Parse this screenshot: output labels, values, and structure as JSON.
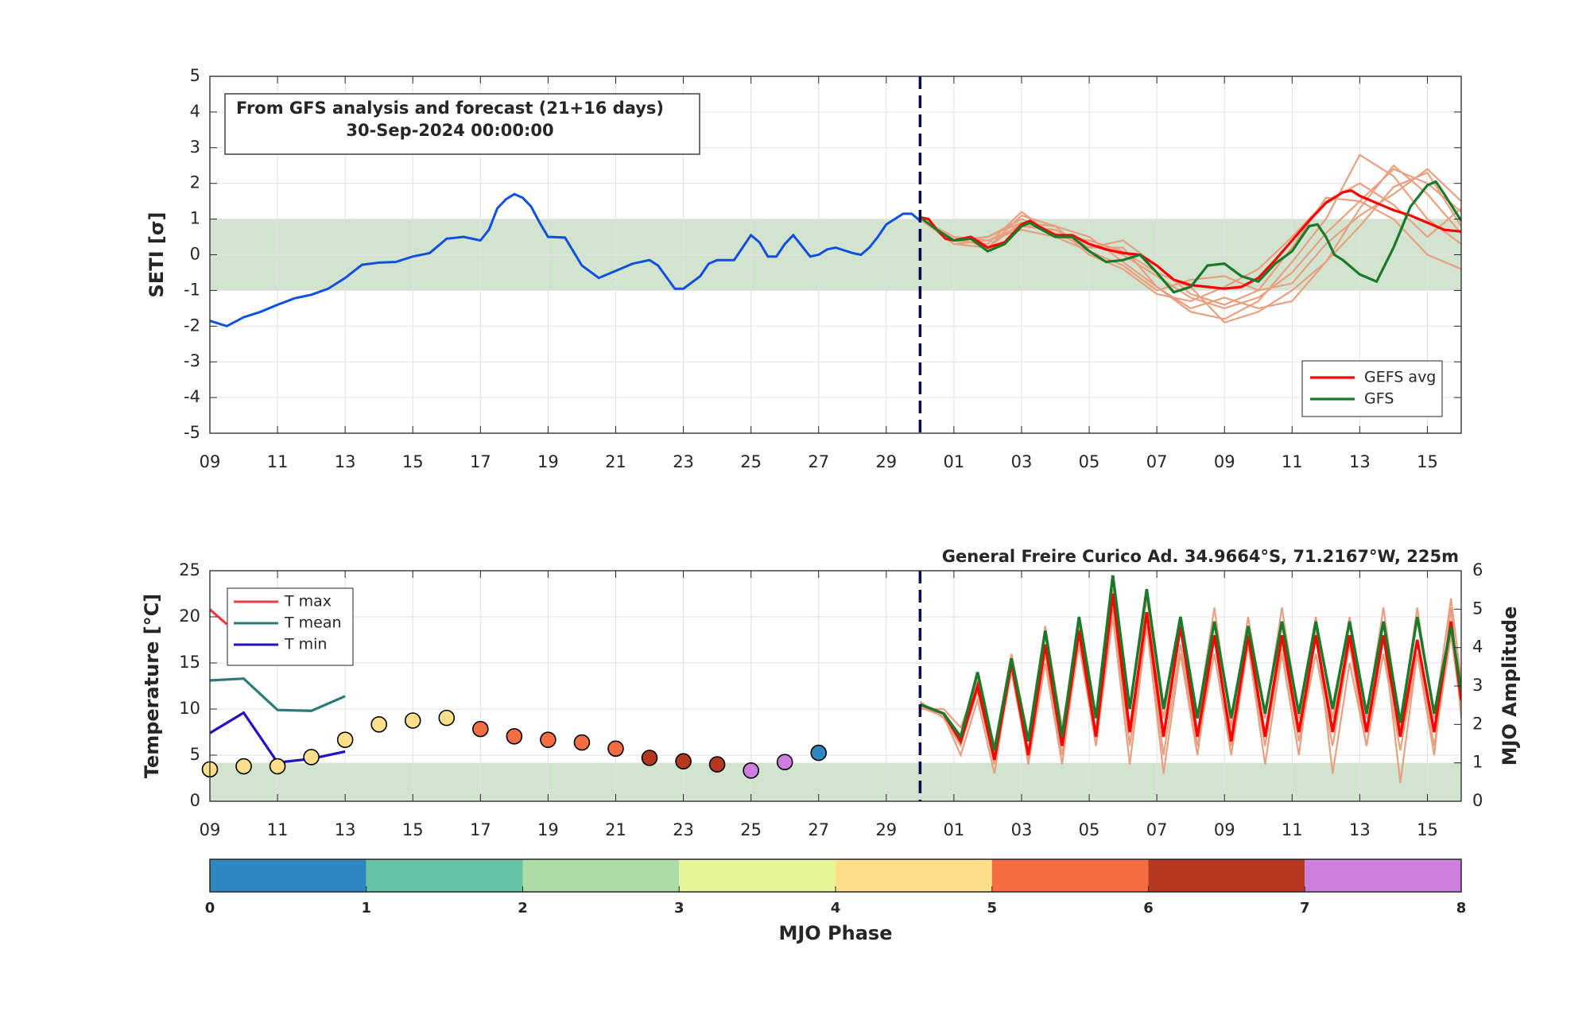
{
  "chart_data": [
    {
      "type": "line",
      "ylabel": "SETI [σ]",
      "annotation": [
        "From GFS analysis and forecast (21+16 days)",
        "30-Sep-2024 00:00:00"
      ],
      "xlim": [
        0,
        37
      ],
      "ylim": [
        -5,
        5
      ],
      "xticks": [
        {
          "value": 0,
          "label": "09"
        },
        {
          "value": 2,
          "label": "11"
        },
        {
          "value": 4,
          "label": "13"
        },
        {
          "value": 6,
          "label": "15"
        },
        {
          "value": 8,
          "label": "17"
        },
        {
          "value": 10,
          "label": "19"
        },
        {
          "value": 12,
          "label": "21"
        },
        {
          "value": 14,
          "label": "23"
        },
        {
          "value": 16,
          "label": "25"
        },
        {
          "value": 18,
          "label": "27"
        },
        {
          "value": 20,
          "label": "29"
        },
        {
          "value": 22,
          "label": "01"
        },
        {
          "value": 24,
          "label": "03"
        },
        {
          "value": 26,
          "label": "05"
        },
        {
          "value": 28,
          "label": "07"
        },
        {
          "value": 30,
          "label": "09"
        },
        {
          "value": 32,
          "label": "11"
        },
        {
          "value": 34,
          "label": "13"
        },
        {
          "value": 36,
          "label": "15"
        }
      ],
      "yticks": [
        -5,
        -4,
        -3,
        -2,
        -1,
        0,
        1,
        2,
        3,
        4,
        5
      ],
      "grid": true,
      "band": [
        -1,
        1
      ],
      "band_color": "#d2e3d0",
      "forecast_start": 21,
      "legend": "lower right",
      "member_color": "#e8a080",
      "member_x": [
        21,
        22,
        23,
        24,
        25,
        26,
        27,
        28,
        29,
        30,
        31,
        32,
        33,
        34,
        35,
        36,
        37
      ],
      "members": [
        [
          1.0,
          0.4,
          0.5,
          0.9,
          0.6,
          0.3,
          0.0,
          -0.6,
          -1.2,
          -1.5,
          -1.2,
          -0.5,
          0.6,
          1.5,
          2.4,
          2.0,
          1.2
        ],
        [
          1.0,
          0.5,
          0.2,
          1.1,
          0.8,
          0.5,
          -0.2,
          -0.9,
          -1.6,
          -1.8,
          -1.3,
          -0.2,
          1.0,
          2.8,
          2.2,
          1.0,
          0.3
        ],
        [
          1.0,
          0.3,
          0.4,
          0.8,
          0.7,
          0.2,
          0.4,
          -0.3,
          -1.1,
          -1.4,
          -1.0,
          -0.8,
          0.3,
          1.1,
          1.7,
          2.4,
          1.5
        ],
        [
          1.0,
          0.4,
          0.3,
          1.2,
          0.5,
          0.1,
          -0.3,
          -1.0,
          -0.7,
          -0.6,
          -1.0,
          0.2,
          1.6,
          1.5,
          1.0,
          0.0,
          -0.4
        ],
        [
          1.0,
          0.5,
          0.4,
          0.7,
          0.5,
          0.4,
          0.1,
          -0.5,
          -0.9,
          -1.9,
          -1.6,
          -1.0,
          -0.2,
          1.3,
          2.5,
          1.7,
          0.6
        ],
        [
          1.0,
          0.3,
          0.2,
          0.9,
          0.8,
          0.0,
          -0.4,
          -1.1,
          -1.3,
          -0.9,
          -0.4,
          0.5,
          1.5,
          2.0,
          1.4,
          0.5,
          1.3
        ],
        [
          1.0,
          0.4,
          0.5,
          1.0,
          0.6,
          0.2,
          0.2,
          -0.9,
          -1.5,
          -1.2,
          -1.5,
          -1.3,
          -0.2,
          0.8,
          1.9,
          2.3,
          0.8
        ]
      ],
      "analysis": {
        "color": "#1050e0",
        "x": [
          0,
          0.5,
          1,
          1.5,
          2,
          2.5,
          3,
          3.5,
          4,
          4.5,
          5,
          5.5,
          6,
          6.5,
          7,
          7.5,
          8,
          8.25,
          8.5,
          8.75,
          9,
          9.25,
          9.5,
          9.75,
          10,
          10.5,
          11,
          11.5,
          12,
          12.5,
          13,
          13.25,
          13.75,
          14,
          14.5,
          14.75,
          15,
          15.5,
          16,
          16.25,
          16.5,
          16.75,
          17,
          17.25,
          17.75,
          18,
          18.25,
          18.5,
          19,
          19.25,
          19.5,
          19.75,
          20,
          20.5,
          20.75,
          21
        ],
        "values": [
          -1.85,
          -2.0,
          -1.75,
          -1.6,
          -1.4,
          -1.22,
          -1.12,
          -0.95,
          -0.65,
          -0.28,
          -0.22,
          -0.2,
          -0.05,
          0.05,
          0.45,
          0.5,
          0.4,
          0.7,
          1.3,
          1.55,
          1.7,
          1.6,
          1.35,
          0.9,
          0.5,
          0.48,
          -0.3,
          -0.65,
          -0.45,
          -0.25,
          -0.15,
          -0.3,
          -0.95,
          -0.95,
          -0.6,
          -0.25,
          -0.15,
          -0.15,
          0.55,
          0.35,
          -0.05,
          -0.05,
          0.3,
          0.55,
          -0.05,
          0.0,
          0.15,
          0.2,
          0.05,
          0.0,
          0.2,
          0.5,
          0.85,
          1.15,
          1.15,
          0.95
        ]
      },
      "series": [
        {
          "name": "GEFS avg",
          "color": "#ff0000",
          "x": [
            21,
            21.25,
            21.5,
            21.75,
            22,
            22.5,
            23,
            23.5,
            24,
            24.25,
            24.5,
            25,
            25.5,
            26,
            26.5,
            27,
            27.5,
            28,
            28.5,
            29,
            29.5,
            30,
            30.5,
            31,
            31.5,
            32,
            32.5,
            33,
            33.5,
            33.75,
            34,
            34.5,
            35,
            35.5,
            36,
            36.5,
            37
          ],
          "values": [
            1.05,
            1.0,
            0.7,
            0.45,
            0.4,
            0.5,
            0.2,
            0.35,
            0.85,
            0.95,
            0.8,
            0.55,
            0.55,
            0.3,
            0.15,
            0.05,
            0.0,
            -0.3,
            -0.7,
            -0.85,
            -0.9,
            -0.95,
            -0.9,
            -0.65,
            -0.15,
            0.4,
            0.95,
            1.45,
            1.75,
            1.8,
            1.65,
            1.45,
            1.25,
            1.1,
            0.9,
            0.7,
            0.65
          ]
        },
        {
          "name": "GFS",
          "color": "#1a7a2a",
          "x": [
            21,
            21.5,
            22,
            22.5,
            23,
            23.5,
            24,
            24.25,
            24.5,
            25,
            25.5,
            26,
            26.5,
            27,
            27.5,
            28,
            28.5,
            29,
            29.5,
            30,
            30.5,
            31,
            31.5,
            32,
            32.5,
            32.75,
            33,
            33.25,
            33.5,
            34,
            34.5,
            35,
            35.5,
            36,
            36.25,
            36.5,
            37
          ],
          "values": [
            1.05,
            0.7,
            0.4,
            0.45,
            0.1,
            0.3,
            0.8,
            0.9,
            0.75,
            0.5,
            0.5,
            0.1,
            -0.2,
            -0.15,
            0.0,
            -0.5,
            -1.05,
            -0.9,
            -0.3,
            -0.25,
            -0.6,
            -0.75,
            -0.25,
            0.1,
            0.8,
            0.85,
            0.5,
            0.0,
            -0.15,
            -0.55,
            -0.75,
            0.2,
            1.35,
            1.95,
            2.05,
            1.7,
            0.95
          ]
        }
      ]
    },
    {
      "type": "line",
      "title": "General Freire Curico Ad. 34.9664°S, 71.2167°W, 225m",
      "ylabel": "Temperature [°C]",
      "y2label": "MJO Amplitude",
      "xlim": [
        0,
        37
      ],
      "ylim": [
        0,
        25
      ],
      "y2lim": [
        0,
        6
      ],
      "xticks": [
        {
          "value": 0,
          "label": "09"
        },
        {
          "value": 2,
          "label": "11"
        },
        {
          "value": 4,
          "label": "13"
        },
        {
          "value": 6,
          "label": "15"
        },
        {
          "value": 8,
          "label": "17"
        },
        {
          "value": 10,
          "label": "19"
        },
        {
          "value": 12,
          "label": "21"
        },
        {
          "value": 14,
          "label": "23"
        },
        {
          "value": 16,
          "label": "25"
        },
        {
          "value": 18,
          "label": "27"
        },
        {
          "value": 20,
          "label": "29"
        },
        {
          "value": 22,
          "label": "01"
        },
        {
          "value": 24,
          "label": "03"
        },
        {
          "value": 26,
          "label": "05"
        },
        {
          "value": 28,
          "label": "07"
        },
        {
          "value": 30,
          "label": "09"
        },
        {
          "value": 32,
          "label": "11"
        },
        {
          "value": 34,
          "label": "13"
        },
        {
          "value": 36,
          "label": "15"
        }
      ],
      "yticks": [
        0,
        5,
        10,
        15,
        20,
        25
      ],
      "y2ticks": [
        0,
        1,
        2,
        3,
        4,
        5,
        6
      ],
      "grid": true,
      "band": [
        0,
        1
      ],
      "band_axis": "y2",
      "band_color": "#d2e3d0",
      "forecast_start": 21,
      "legend": "upper left",
      "series": [
        {
          "name": "T max",
          "color": "#f03c3c",
          "x": [
            0,
            0.5
          ],
          "values": [
            20.8,
            19.2
          ]
        },
        {
          "name": "T mean",
          "color": "#2a7a78",
          "x": [
            0,
            1,
            2,
            3,
            4
          ],
          "values": [
            13.1,
            13.3,
            9.9,
            9.8,
            11.4
          ]
        },
        {
          "name": "T min",
          "color": "#2010c8",
          "x": [
            0,
            1,
            2,
            3,
            4
          ],
          "values": [
            7.4,
            9.6,
            4.2,
            4.6,
            5.4
          ]
        }
      ],
      "member_color": "#e8a080",
      "member_x": [
        21,
        21.7,
        22.2,
        22.7,
        23.2,
        23.7,
        24.2,
        24.7,
        25.2,
        25.7,
        26.2,
        26.7,
        27.2,
        27.7,
        28.2,
        28.7,
        29.2,
        29.7,
        30.2,
        30.7,
        31.2,
        31.7,
        32.2,
        32.7,
        33.2,
        33.7,
        34.2,
        34.7,
        35.2,
        35.7,
        36.2,
        36.7,
        37
      ],
      "members": [
        [
          10.8,
          9,
          6,
          12,
          4,
          14,
          4.5,
          16,
          5,
          17,
          6,
          21,
          6,
          19,
          5,
          17,
          6,
          16,
          5,
          17,
          6,
          17,
          6.5,
          16,
          6,
          17,
          6,
          16,
          5.5,
          16,
          6,
          18,
          10
        ],
        [
          10,
          10,
          8,
          13,
          6,
          16,
          7,
          19,
          8,
          19,
          9,
          23,
          10,
          22,
          9,
          20,
          9,
          21,
          8,
          20,
          9,
          21,
          9,
          20,
          9,
          20,
          9,
          21,
          8,
          21,
          9,
          22,
          13
        ],
        [
          10.2,
          9.2,
          5,
          11,
          3,
          15,
          4,
          15,
          4,
          18,
          6,
          20,
          4,
          19,
          3,
          16,
          5,
          18,
          6,
          17,
          4,
          16,
          5,
          19,
          3,
          15,
          6,
          18,
          2,
          16,
          5,
          21,
          9
        ]
      ],
      "forecast": [
        {
          "color": "#ff0000",
          "values": [
            10.5,
            9.5,
            6.5,
            12.5,
            4.5,
            15,
            5,
            17,
            6,
            18.5,
            7,
            22.5,
            7.5,
            20.5,
            7,
            19,
            7,
            18,
            6.5,
            18,
            7,
            18,
            7.5,
            18,
            7.5,
            18,
            7.5,
            18,
            7,
            17.5,
            7.5,
            19.5,
            11
          ]
        },
        {
          "color": "#1a7a2a",
          "values": [
            10.5,
            9.5,
            7,
            14,
            5.5,
            15.5,
            6.5,
            18.5,
            7,
            20,
            9,
            24.5,
            10,
            23,
            10,
            20,
            9,
            19.5,
            9,
            19,
            9.5,
            19.5,
            9.5,
            19.5,
            10,
            19.5,
            9.5,
            19.5,
            8.5,
            20,
            9.5,
            19,
            12
          ]
        }
      ],
      "mjo": {
        "x": [
          0,
          1,
          2,
          3,
          4,
          5,
          6,
          7,
          8,
          9,
          10,
          11,
          12,
          13,
          14,
          15,
          16,
          17,
          18
        ],
        "amplitude": [
          0.83,
          0.91,
          0.91,
          1.15,
          1.6,
          2.0,
          2.1,
          2.17,
          1.88,
          1.69,
          1.6,
          1.53,
          1.37,
          1.13,
          1.04,
          0.96,
          0.8,
          1.02,
          1.26
        ],
        "phase": [
          5,
          5,
          5,
          5,
          5,
          5,
          5,
          5,
          6,
          6,
          6,
          6,
          6,
          7,
          7,
          7,
          8,
          8,
          1
        ]
      },
      "colorbar": {
        "label": "MJO Phase",
        "ticks": [
          0,
          1,
          2,
          3,
          4,
          5,
          6,
          7,
          8
        ],
        "colors": [
          "#2f87bf",
          "#66c2a5",
          "#abdda4",
          "#e6f598",
          "#fee08b",
          "#f46d43",
          "#b5391f",
          "#cd7fe0"
        ]
      }
    }
  ]
}
